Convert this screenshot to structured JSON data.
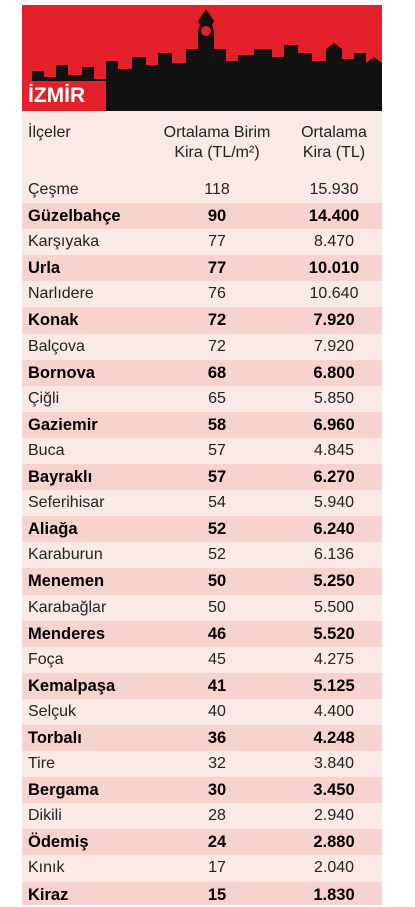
{
  "header": {
    "city": "İZMİR"
  },
  "table": {
    "columns": [
      "İlçeler",
      [
        "Ortalama Birim",
        "Kira (TL/m²)"
      ],
      [
        "Ortalama",
        "Kira (TL)"
      ]
    ],
    "rows": [
      [
        "Çeşme",
        "118",
        "15.930"
      ],
      [
        "Güzelbahçe",
        "90",
        "14.400"
      ],
      [
        "Karşıyaka",
        "77",
        "8.470"
      ],
      [
        "Urla",
        "77",
        "10.010"
      ],
      [
        "Narlıdere",
        "76",
        "10.640"
      ],
      [
        "Konak",
        "72",
        "7.920"
      ],
      [
        "Balçova",
        "72",
        "7.920"
      ],
      [
        "Bornova",
        "68",
        "6.800"
      ],
      [
        "Çiğli",
        "65",
        "5.850"
      ],
      [
        "Gaziemir",
        "58",
        "6.960"
      ],
      [
        "Buca",
        "57",
        "4.845"
      ],
      [
        "Bayraklı",
        "57",
        "6.270"
      ],
      [
        "Seferihisar",
        "54",
        "5.940"
      ],
      [
        "Aliağa",
        "52",
        "6.240"
      ],
      [
        "Karaburun",
        "52",
        "6.136"
      ],
      [
        "Menemen",
        "50",
        "5.250"
      ],
      [
        "Karabağlar",
        "50",
        "5.500"
      ],
      [
        "Menderes",
        "46",
        "5.520"
      ],
      [
        "Foça",
        "45",
        "4.275"
      ],
      [
        "Kemalpaşa",
        "41",
        "5.125"
      ],
      [
        "Selçuk",
        "40",
        "4.400"
      ],
      [
        "Torbalı",
        "36",
        "4.248"
      ],
      [
        "Tire",
        "32",
        "3.840"
      ],
      [
        "Bergama",
        "30",
        "3.450"
      ],
      [
        "Dikili",
        "28",
        "2.940"
      ],
      [
        "Ödemiş",
        "24",
        "2.880"
      ],
      [
        "Kınık",
        "17",
        "2.040"
      ],
      [
        "Kiraz",
        "15",
        "1.830"
      ]
    ]
  }
}
